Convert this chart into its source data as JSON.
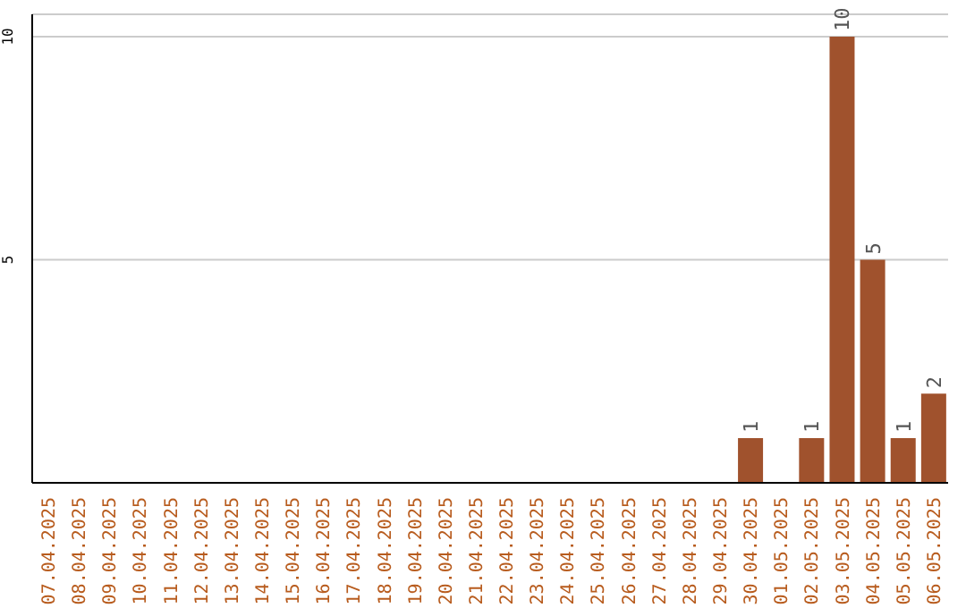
{
  "chart_data": {
    "type": "bar",
    "categories": [
      "07.04.2025",
      "08.04.2025",
      "09.04.2025",
      "10.04.2025",
      "11.04.2025",
      "12.04.2025",
      "13.04.2025",
      "14.04.2025",
      "15.04.2025",
      "16.04.2025",
      "17.04.2025",
      "18.04.2025",
      "19.04.2025",
      "20.04.2025",
      "21.04.2025",
      "22.04.2025",
      "23.04.2025",
      "24.04.2025",
      "25.04.2025",
      "26.04.2025",
      "27.04.2025",
      "28.04.2025",
      "29.04.2025",
      "30.04.2025",
      "01.05.2025",
      "02.05.2025",
      "03.05.2025",
      "04.05.2025",
      "05.05.2025",
      "06.05.2025"
    ],
    "values": [
      0,
      0,
      0,
      0,
      0,
      0,
      0,
      0,
      0,
      0,
      0,
      0,
      0,
      0,
      0,
      0,
      0,
      0,
      0,
      0,
      0,
      0,
      0,
      1,
      0,
      1,
      10,
      5,
      1,
      2
    ],
    "value_labels": [
      null,
      null,
      null,
      null,
      null,
      null,
      null,
      null,
      null,
      null,
      null,
      null,
      null,
      null,
      null,
      null,
      null,
      null,
      null,
      null,
      null,
      null,
      null,
      "1",
      null,
      "1",
      "10",
      "5",
      "1",
      "2"
    ],
    "color": "#a0522d",
    "ylim": [
      0,
      10.5
    ],
    "yticks": [
      5,
      10
    ],
    "grid": "y",
    "legend": false
  }
}
